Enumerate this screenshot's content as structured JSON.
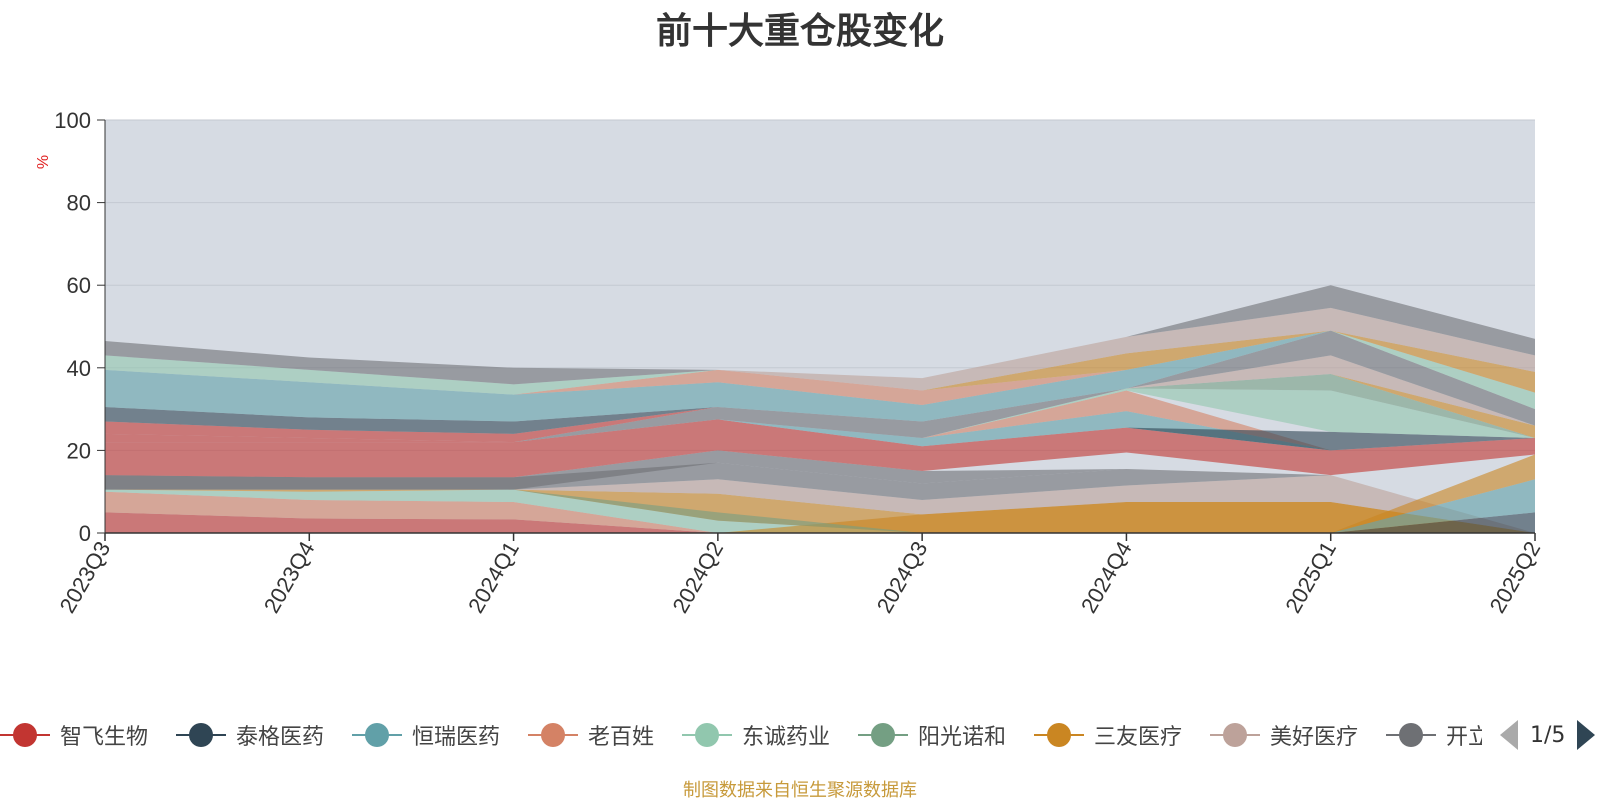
{
  "title": "前十大重仓股变化",
  "source_note": "制图数据来自恒生聚源数据库",
  "pager": {
    "text": "1/5"
  },
  "chart_data": {
    "type": "area",
    "title": "前十大重仓股变化",
    "ylabel": "%",
    "ylim": [
      0,
      100
    ],
    "yticks": [
      0,
      20,
      40,
      60,
      80,
      100
    ],
    "grid": true,
    "legend_position": "bottom",
    "background_color": "#d6dbe3",
    "categories": [
      "2023Q3",
      "2023Q4",
      "2024Q1",
      "2024Q2",
      "2024Q3",
      "2024Q4",
      "2025Q1",
      "2025Q2"
    ],
    "bands": [
      {
        "color": "#c23531",
        "lower": [
          0,
          0,
          0,
          0,
          0,
          0,
          0,
          0
        ],
        "upper": [
          5,
          3.5,
          3.3,
          0,
          0,
          0,
          0,
          0
        ]
      },
      {
        "color": "#d48265",
        "lower": [
          5,
          3.5,
          3.3,
          0,
          0,
          0,
          0,
          0
        ],
        "upper": [
          10,
          8,
          7.5,
          0,
          0,
          0,
          0,
          0
        ]
      },
      {
        "color": "#91c7ae",
        "lower": [
          10,
          8,
          7.5,
          0,
          0,
          0,
          0,
          0
        ],
        "upper": [
          10.5,
          10,
          10.5,
          3,
          0,
          0,
          0,
          0
        ]
      },
      {
        "color": "#ca8622",
        "lower": [
          0,
          0,
          0,
          0,
          0,
          0,
          0,
          0
        ],
        "upper": [
          0,
          0,
          0,
          0,
          4.5,
          7.5,
          7.5,
          0
        ]
      },
      {
        "color": "#ca8622",
        "lower": [
          10.5,
          10,
          10.5,
          3,
          0,
          0,
          0,
          0
        ],
        "upper": [
          10.5,
          10.5,
          10.5,
          9.5,
          4.5,
          7.5,
          7.5,
          0
        ]
      },
      {
        "color": "#749f83",
        "lower": [
          10.5,
          10.5,
          10.5,
          3,
          0,
          0,
          0,
          0
        ],
        "upper": [
          10.5,
          10.5,
          10.5,
          5,
          0,
          0,
          0,
          0
        ]
      },
      {
        "color": "#bda29a",
        "lower": [
          10.5,
          10.5,
          10.5,
          9.5,
          4.5,
          7.5,
          7.5,
          0
        ],
        "upper": [
          10.5,
          10.5,
          10.5,
          13,
          8,
          11.5,
          14,
          0
        ]
      },
      {
        "color": "#6e7074",
        "lower": [
          10.5,
          10.5,
          10.5,
          13,
          8,
          11.5,
          14,
          0
        ],
        "upper": [
          14,
          13.5,
          13.5,
          17,
          12,
          15.5,
          14,
          0
        ]
      },
      {
        "color": "#6e7074",
        "lower": [
          10.5,
          10.5,
          10.5,
          17,
          12,
          15.5,
          14,
          0
        ],
        "upper": [
          14,
          13.5,
          13.5,
          20,
          15,
          15.5,
          14,
          0
        ]
      },
      {
        "color": "#2f4554",
        "lower": [
          0,
          0,
          0,
          0,
          0,
          0,
          0,
          0
        ],
        "upper": [
          0,
          0,
          0,
          0,
          0,
          0,
          0,
          5
        ]
      },
      {
        "color": "#61a0a8",
        "lower": [
          0,
          0,
          0,
          0,
          0,
          0,
          0,
          5
        ],
        "upper": [
          0,
          0,
          0,
          0,
          0,
          0,
          0,
          13
        ]
      },
      {
        "color": "#ca8622",
        "lower": [
          0,
          0,
          0,
          0,
          0,
          0,
          0,
          13
        ],
        "upper": [
          0,
          0,
          0,
          0,
          0,
          0,
          0,
          19
        ]
      },
      {
        "color": "#bda29a",
        "lower": [
          0,
          0,
          0,
          0,
          0,
          0,
          14,
          19
        ],
        "upper": [
          0,
          0,
          0,
          0,
          0,
          0,
          14,
          19
        ]
      },
      {
        "color": "#c23531",
        "lower": [
          14,
          13.5,
          13.5,
          20,
          15,
          19.5,
          14,
          19
        ],
        "upper": [
          22,
          22,
          22,
          27.5,
          21,
          25.5,
          20,
          23
        ]
      },
      {
        "color": "#61a0a8",
        "lower": [
          22,
          22,
          22,
          27.5,
          21,
          25.5,
          20,
          23
        ],
        "upper": [
          22,
          22,
          22,
          27.5,
          23,
          29.5,
          20,
          23
        ]
      },
      {
        "color": "#d48265",
        "lower": [
          22,
          22,
          22,
          27.5,
          23,
          29.5,
          20,
          23
        ],
        "upper": [
          22,
          22,
          22,
          27.5,
          23,
          34.5,
          20,
          23
        ]
      },
      {
        "color": "#2f4554",
        "lower": [
          22,
          22,
          22,
          27.5,
          23,
          25.5,
          20,
          23
        ],
        "upper": [
          22,
          22,
          22,
          27.5,
          23,
          25.5,
          24.5,
          23
        ]
      },
      {
        "color": "#91c7ae",
        "lower": [
          22,
          22,
          22,
          27.5,
          23,
          34.5,
          24.5,
          23
        ],
        "upper": [
          22,
          22,
          22,
          27.5,
          23,
          35,
          34.5,
          23
        ]
      },
      {
        "color": "#749f83",
        "lower": [
          22,
          22,
          22,
          27.5,
          23,
          35,
          34.5,
          23
        ],
        "upper": [
          22,
          22,
          22,
          27.5,
          23,
          35,
          38.5,
          23
        ]
      },
      {
        "color": "#ca8622",
        "lower": [
          22,
          22,
          22,
          27.5,
          23,
          35,
          38.5,
          23
        ],
        "upper": [
          22,
          22,
          22,
          27.5,
          23,
          35,
          38.5,
          26
        ]
      },
      {
        "color": "#bda29a",
        "lower": [
          22,
          22,
          22,
          27.5,
          23,
          35,
          38.5,
          26
        ],
        "upper": [
          22,
          22,
          22,
          27.5,
          23,
          35,
          43,
          26
        ]
      },
      {
        "color": "#6e7074",
        "lower": [
          22,
          22,
          22,
          27.5,
          23,
          35,
          43,
          26
        ],
        "upper": [
          22,
          22,
          22,
          30.5,
          27,
          35,
          49,
          30
        ]
      },
      {
        "color": "#c23531",
        "lower": [
          22,
          22,
          22,
          30.5,
          27,
          35,
          49,
          30
        ],
        "upper": [
          24,
          23,
          22,
          30.5,
          27,
          35,
          49,
          30
        ]
      },
      {
        "color": "#c23531",
        "lower": [
          24,
          23,
          22,
          30.5,
          27,
          35,
          49,
          30
        ],
        "upper": [
          27,
          25,
          24,
          30.5,
          27,
          35,
          49,
          30
        ]
      },
      {
        "color": "#2f4554",
        "lower": [
          27,
          25,
          24,
          30.5,
          27,
          35,
          49,
          30
        ],
        "upper": [
          30.5,
          28,
          27,
          30.5,
          27,
          35,
          49,
          30
        ]
      },
      {
        "color": "#61a0a8",
        "lower": [
          30.5,
          28,
          27,
          30.5,
          27,
          35,
          49,
          30
        ],
        "upper": [
          39.5,
          36.5,
          33.5,
          36.5,
          31,
          39.5,
          49,
          30
        ]
      },
      {
        "color": "#d48265",
        "lower": [
          39.5,
          36.5,
          33.5,
          36.5,
          31,
          39.5,
          49,
          30
        ],
        "upper": [
          39.5,
          36.5,
          33.5,
          39.5,
          34.5,
          39.5,
          49,
          30
        ]
      },
      {
        "color": "#91c7ae",
        "lower": [
          39.5,
          36.5,
          33.5,
          39.5,
          34.5,
          39.5,
          49,
          30
        ],
        "upper": [
          43,
          39.5,
          36,
          39.5,
          34.5,
          39.5,
          49,
          34
        ]
      },
      {
        "color": "#ca8622",
        "lower": [
          43,
          39.5,
          36,
          39.5,
          34.5,
          39.5,
          49,
          34
        ],
        "upper": [
          43,
          39.5,
          36,
          39.5,
          34.5,
          43.5,
          49,
          39
        ]
      },
      {
        "color": "#bda29a",
        "lower": [
          43,
          39.5,
          36,
          39.5,
          34.5,
          43.5,
          49,
          39
        ],
        "upper": [
          43,
          39.5,
          36,
          39.5,
          37.5,
          47.5,
          54.5,
          43
        ]
      },
      {
        "color": "#6e7074",
        "lower": [
          43,
          39.5,
          36,
          39.5,
          37.5,
          47.5,
          54.5,
          43
        ],
        "upper": [
          46.5,
          42.5,
          40,
          39.5,
          37.5,
          47.5,
          60,
          47
        ]
      }
    ],
    "legend": [
      {
        "name": "智飞生物",
        "color": "#c23531"
      },
      {
        "name": "泰格医药",
        "color": "#2f4554"
      },
      {
        "name": "恒瑞医药",
        "color": "#61a0a8"
      },
      {
        "name": "老百姓",
        "color": "#d48265"
      },
      {
        "name": "东诚药业",
        "color": "#91c7ae"
      },
      {
        "name": "阳光诺和",
        "color": "#749f83"
      },
      {
        "name": "三友医疗",
        "color": "#ca8622"
      },
      {
        "name": "美好医疗",
        "color": "#bda29a"
      },
      {
        "name": "开立医疗",
        "color": "#6e7074"
      }
    ]
  }
}
